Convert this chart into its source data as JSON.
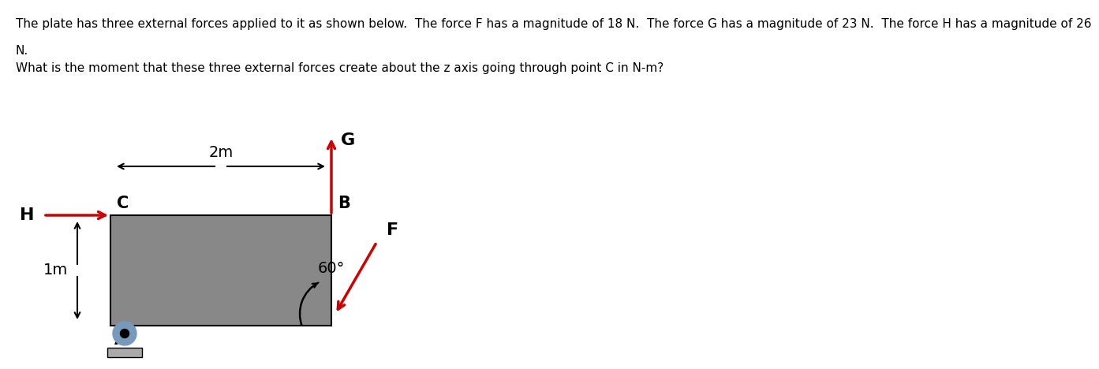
{
  "text_line1": "The plate has three external forces applied to it as shown below.  The force F has a magnitude of 18 N.  The force G has a magnitude of 23 N.  The force H has a magnitude of 26",
  "text_line2": "N.",
  "text_line3": "What is the moment that these three external forces create about the z axis going through point C in N-m?",
  "plate_color": "#888888",
  "arrow_color": "#cc0000",
  "text_color": "#000000",
  "label_H": "H",
  "label_C": "C",
  "label_G": "G",
  "label_B": "B",
  "label_F": "F",
  "label_A": "A",
  "label_1m": "1m",
  "label_2m": "2m",
  "label_60": "60°",
  "support_color_outer": "#7799bb",
  "support_color_inner": "#000000",
  "ground_color": "#aaaaaa",
  "font_size_text": 11,
  "font_size_label": 14,
  "font_size_dim": 13
}
